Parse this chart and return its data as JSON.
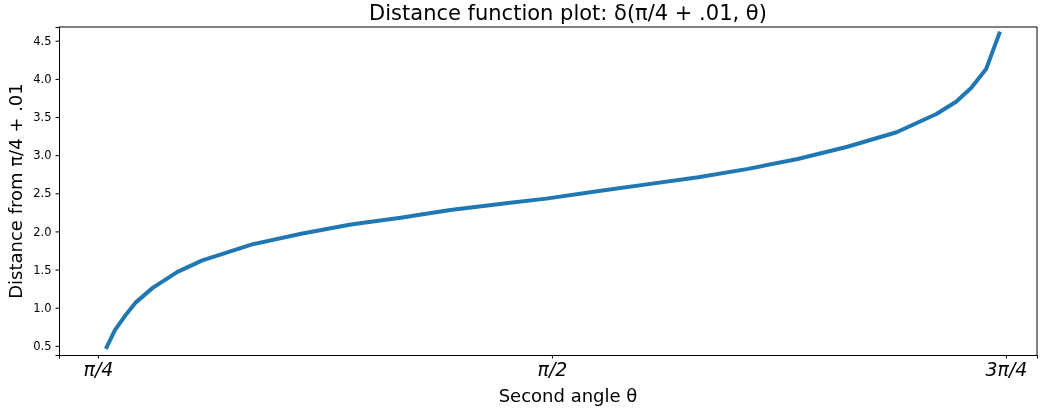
{
  "chart_data": {
    "type": "line",
    "title": "Distance function plot: δ(π/4 + .01, θ)",
    "xlabel": "Second angle θ",
    "ylabel": "Distance from π/4 + .01",
    "x": [
      0.799,
      0.815,
      0.832,
      0.851,
      0.88,
      0.923,
      0.966,
      1.052,
      1.137,
      1.223,
      1.309,
      1.395,
      1.481,
      1.561,
      1.652,
      1.738,
      1.824,
      1.91,
      1.996,
      2.082,
      2.167,
      2.236,
      2.27,
      2.296,
      2.322,
      2.346
    ],
    "series": [
      {
        "color": "#1f77b4",
        "values": [
          0.46,
          0.71,
          0.89,
          1.07,
          1.26,
          1.47,
          1.62,
          1.83,
          1.97,
          2.09,
          2.18,
          2.28,
          2.36,
          2.43,
          2.53,
          2.62,
          2.71,
          2.82,
          2.95,
          3.11,
          3.3,
          3.54,
          3.7,
          3.88,
          4.13,
          4.62
        ]
      }
    ],
    "xlim": [
      0.718,
      2.41
    ],
    "ylim": [
      0.38,
      4.68
    ],
    "xticks": [
      {
        "value": 0.7854,
        "label": "π/4"
      },
      {
        "value": 1.5708,
        "label": "π/2"
      },
      {
        "value": 2.3562,
        "label": "3π/4"
      }
    ],
    "yticks": [
      {
        "value": 0.5,
        "label": "0.5"
      },
      {
        "value": 1,
        "label": "1.0"
      },
      {
        "value": 1.5,
        "label": "1.5"
      },
      {
        "value": 2,
        "label": "2.0"
      },
      {
        "value": 2.5,
        "label": "2.5"
      },
      {
        "value": 3,
        "label": "3.0"
      },
      {
        "value": 3.5,
        "label": "3.5"
      },
      {
        "value": 4,
        "label": "4.0"
      },
      {
        "value": 4.5,
        "label": "4.5"
      }
    ],
    "line_style": "solid",
    "marker": "none"
  }
}
